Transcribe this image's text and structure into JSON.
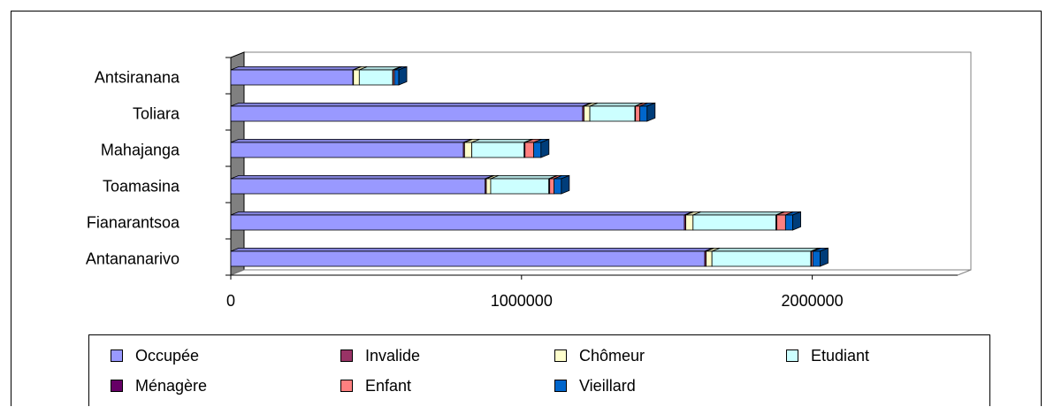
{
  "chart_data": {
    "type": "bar",
    "orientation": "horizontal",
    "stacked": true,
    "style": "3d",
    "categories": [
      "Antananarivo",
      "Fianarantsoa",
      "Toamasina",
      "Mahajanga",
      "Toliara",
      "Antsiranana"
    ],
    "series": [
      {
        "name": "Occupée",
        "color": "#9999ff",
        "values": [
          1630000,
          1560000,
          875000,
          800000,
          1210000,
          420000
        ]
      },
      {
        "name": "Invalide",
        "color": "#993366",
        "values": [
          5000,
          5000,
          4000,
          4000,
          5000,
          2000
        ]
      },
      {
        "name": "Chômeur",
        "color": "#ffffcc",
        "values": [
          20000,
          25000,
          15000,
          25000,
          20000,
          20000
        ]
      },
      {
        "name": "Etudiant",
        "color": "#ccffff",
        "values": [
          340000,
          285000,
          200000,
          180000,
          155000,
          115000
        ]
      },
      {
        "name": "Ménagère",
        "color": "#660066",
        "values": [
          2000,
          3000,
          3000,
          3000,
          2000,
          1000
        ]
      },
      {
        "name": "Enfant",
        "color": "#ff8080",
        "values": [
          5000,
          30000,
          15000,
          30000,
          15000,
          5000
        ]
      },
      {
        "name": "Vieillard",
        "color": "#0066cc",
        "values": [
          25000,
          25000,
          25000,
          25000,
          25000,
          15000
        ]
      }
    ],
    "xlim": [
      0,
      2500000
    ],
    "xticks": [
      0,
      1000000,
      2000000
    ],
    "xtick_labels": [
      "0",
      "1000000",
      "2000000"
    ],
    "grid": false,
    "legend_position": "bottom"
  }
}
